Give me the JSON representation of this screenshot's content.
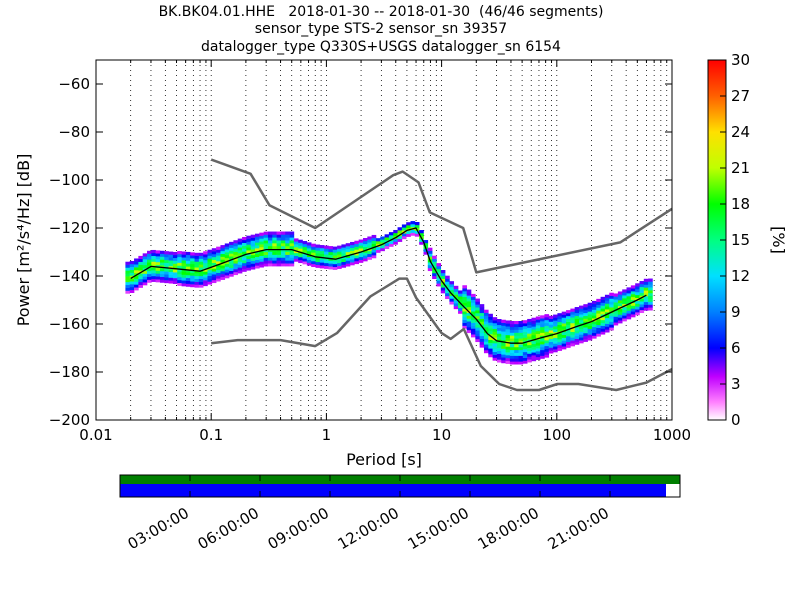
{
  "header": {
    "line1": "BK.BK04.01.HHE   2018-01-30 -- 2018-01-30  (46/46 segments)",
    "line2": "sensor_type STS-2 sensor_sn 39357",
    "line3": "datalogger_type Q330S+USGS datalogger_sn 6154"
  },
  "chart_data": {
    "type": "heatmap",
    "title": "BK.BK04.01.HHE   2018-01-30 -- 2018-01-30  (46/46 segments)",
    "xlabel": "Period [s]",
    "ylabel": "Power [m²/s⁴/Hz] [dB]",
    "x_scale": "log",
    "xlim": [
      0.01,
      1000
    ],
    "ylim": [
      -200,
      -50
    ],
    "x_ticks": [
      0.01,
      0.1,
      1,
      10,
      100,
      1000
    ],
    "x_tick_labels": [
      "0.01",
      "0.1",
      "1",
      "10",
      "100",
      "1000"
    ],
    "y_ticks": [
      -200,
      -180,
      -160,
      -140,
      -120,
      -100,
      -80,
      -60
    ],
    "y_tick_labels": [
      "−200",
      "−180",
      "−160",
      "−140",
      "−120",
      "−100",
      "−80",
      "−60"
    ],
    "grid": "dotted vertical lines at log decades and sub-decades",
    "high_noise_model": {
      "x": [
        0.1,
        0.22,
        0.32,
        0.8,
        3.8,
        4.6,
        6.3,
        7.9,
        15.4,
        20,
        354.8,
        1000
      ],
      "y": [
        -91.5,
        -97.4,
        -110.5,
        -120,
        -98,
        -96.5,
        -101,
        -113.5,
        -120,
        -138.5,
        -126,
        -112
      ]
    },
    "low_noise_model": {
      "x": [
        0.1,
        0.17,
        0.4,
        0.8,
        1.24,
        2.4,
        4.3,
        5,
        6,
        10,
        12,
        15.6,
        21.9,
        31.6,
        45,
        70,
        101,
        154,
        328,
        600,
        1000
      ],
      "y": [
        -168,
        -166.7,
        -166.7,
        -169.2,
        -163.7,
        -148.6,
        -141.1,
        -141.1,
        -149,
        -163.8,
        -166.2,
        -162.1,
        -177.5,
        -185,
        -187.5,
        -187.5,
        -185,
        -185,
        -187.5,
        -184.4,
        -178.8
      ]
    },
    "median": {
      "x": [
        0.02,
        0.03,
        0.05,
        0.08,
        0.12,
        0.2,
        0.3,
        0.5,
        0.8,
        1.2,
        2,
        3,
        4,
        5,
        6,
        7,
        8,
        10,
        12,
        15,
        20,
        25,
        30,
        40,
        50,
        70,
        100,
        150,
        200,
        300,
        500,
        600
      ],
      "y": [
        -141,
        -136,
        -137,
        -138,
        -135,
        -131,
        -129,
        -129,
        -132,
        -133,
        -130,
        -127,
        -124,
        -121,
        -120,
        -126,
        -134,
        -142,
        -147,
        -152,
        -158,
        -164,
        -167,
        -168,
        -168,
        -166,
        -164,
        -161,
        -159,
        -155,
        -150,
        -148
      ]
    },
    "colorbar": {
      "label": "[%]",
      "min": 0,
      "max": 30,
      "ticks": [
        0,
        3,
        6,
        9,
        12,
        15,
        18,
        21,
        24,
        27,
        30
      ],
      "tick_labels": [
        "0",
        "3",
        "6",
        "9",
        "12",
        "15",
        "18",
        "21",
        "24",
        "27",
        "30"
      ]
    },
    "time_axis": {
      "labels": [
        "03:00:00",
        "06:00:00",
        "09:00:00",
        "12:00:00",
        "15:00:00",
        "18:00:00",
        "21:00:00"
      ],
      "data_coverage_color": "#007f00",
      "segment_coverage_color": "#0000ff",
      "segment_coverage_end_fraction": 0.975
    }
  }
}
